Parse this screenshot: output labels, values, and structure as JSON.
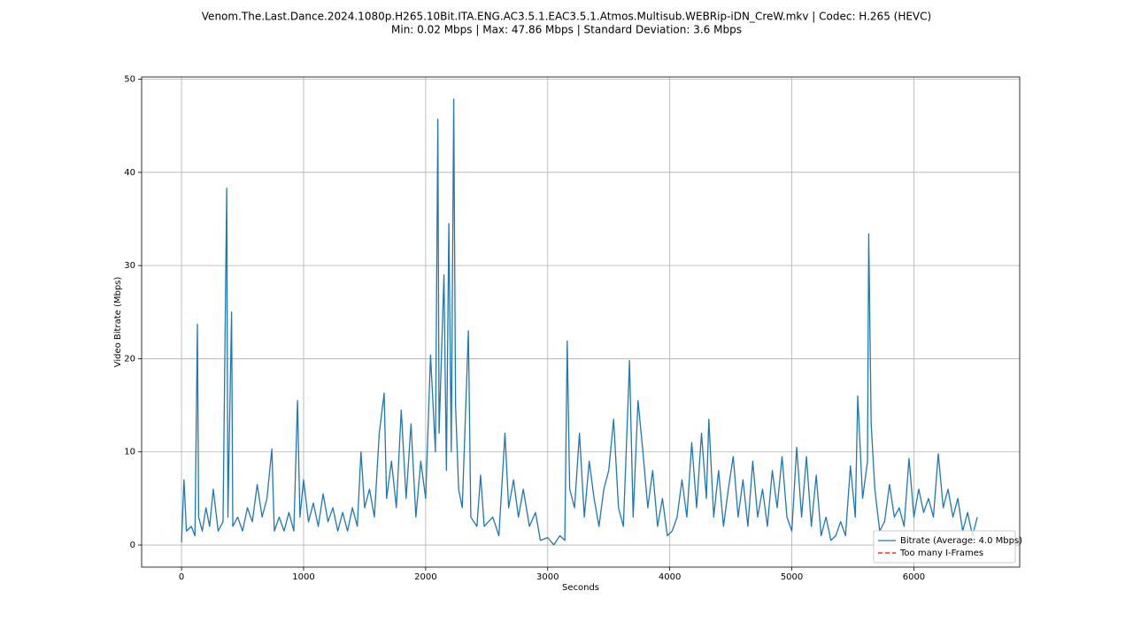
{
  "chart_data": {
    "type": "line",
    "title": "Venom.The.Last.Dance.2024.1080p.H265.10Bit.ITA.ENG.AC3.5.1.EAC3.5.1.Atmos.Multisub.WEBRip-iDN_CreW.mkv | Codec: H.265 (HEVC)",
    "subtitle": "Min: 0.02 Mbps | Max: 47.86 Mbps | Standard Deviation: 3.6 Mbps",
    "x_label": "Seconds",
    "y_label": "Video Bitrate (Mbps)",
    "xlim": [
      -327,
      6867
    ],
    "ylim": [
      -2.37,
      50.24
    ],
    "xticks": [
      0,
      1000,
      2000,
      3000,
      4000,
      5000,
      6000
    ],
    "yticks": [
      0,
      10,
      20,
      30,
      40,
      50
    ],
    "grid": true,
    "legend": "lower right",
    "series": [
      {
        "name": "Bitrate (Average: 4.0 Mbps)",
        "color": "#1f77b4",
        "dashed": false,
        "x": [
          0,
          20,
          40,
          80,
          110,
          130,
          140,
          170,
          200,
          230,
          260,
          300,
          340,
          370,
          380,
          410,
          420,
          460,
          500,
          540,
          580,
          620,
          660,
          700,
          740,
          760,
          800,
          840,
          880,
          920,
          950,
          970,
          1000,
          1040,
          1080,
          1120,
          1160,
          1200,
          1240,
          1280,
          1320,
          1360,
          1400,
          1440,
          1470,
          1500,
          1540,
          1580,
          1620,
          1660,
          1680,
          1720,
          1760,
          1800,
          1840,
          1880,
          1920,
          1960,
          2000,
          2040,
          2080,
          2100,
          2110,
          2150,
          2170,
          2190,
          2210,
          2230,
          2245,
          2270,
          2300,
          2350,
          2370,
          2420,
          2450,
          2480,
          2550,
          2600,
          2650,
          2680,
          2720,
          2760,
          2800,
          2850,
          2900,
          2940,
          3000,
          3050,
          3100,
          3140,
          3160,
          3180,
          3220,
          3260,
          3300,
          3340,
          3380,
          3420,
          3460,
          3500,
          3540,
          3580,
          3620,
          3660,
          3670,
          3700,
          3740,
          3780,
          3820,
          3860,
          3900,
          3940,
          3980,
          4020,
          4060,
          4100,
          4140,
          4180,
          4220,
          4260,
          4300,
          4320,
          4360,
          4400,
          4440,
          4480,
          4520,
          4560,
          4600,
          4640,
          4680,
          4720,
          4760,
          4800,
          4840,
          4880,
          4920,
          4960,
          5000,
          5040,
          5080,
          5120,
          5160,
          5200,
          5240,
          5280,
          5320,
          5360,
          5400,
          5440,
          5480,
          5520,
          5540,
          5580,
          5620,
          5630,
          5650,
          5680,
          5720,
          5760,
          5800,
          5840,
          5880,
          5920,
          5960,
          6000,
          6040,
          6080,
          6120,
          6160,
          6200,
          6240,
          6280,
          6320,
          6360,
          6400,
          6440,
          6480,
          6520
        ],
        "values": [
          0.3,
          7,
          1.5,
          2,
          1,
          23.7,
          3,
          1.5,
          4,
          2,
          6,
          1.5,
          2.5,
          38.3,
          3,
          25,
          2,
          3,
          1.5,
          4,
          2.5,
          6.5,
          3,
          5,
          10.3,
          1.5,
          3,
          1.5,
          3.5,
          1.5,
          15.5,
          3,
          7,
          2.5,
          4.5,
          2,
          5.5,
          2.5,
          4,
          1.5,
          3.5,
          1.5,
          4,
          2,
          10,
          4,
          6,
          3,
          12,
          16.3,
          5,
          9,
          4,
          14.5,
          5,
          13,
          3,
          9,
          5,
          20.4,
          10,
          45.7,
          12,
          29,
          8,
          34.5,
          10,
          47.86,
          15,
          6,
          4,
          23,
          3,
          2,
          7.5,
          2,
          3,
          1,
          12,
          4,
          7,
          3,
          6,
          2,
          3.5,
          0.5,
          0.8,
          0.02,
          1,
          0.5,
          21.9,
          6,
          4,
          12,
          3,
          9,
          5,
          2,
          6,
          8,
          13.5,
          4,
          2,
          16,
          19.8,
          3,
          15.5,
          10,
          4,
          8,
          2,
          5,
          1,
          1.5,
          3,
          7,
          3,
          11,
          4,
          12,
          5,
          13.5,
          3,
          8,
          2,
          6,
          9.5,
          3,
          7,
          2,
          9,
          3,
          6,
          2,
          8,
          4,
          9.5,
          3,
          1.5,
          10.5,
          3,
          9.5,
          2,
          7.5,
          1,
          3,
          0.5,
          1,
          2.5,
          1,
          8.5,
          3,
          16,
          5,
          9,
          33.4,
          13,
          6,
          1.5,
          2.5,
          6.5,
          3,
          4,
          2,
          9.3,
          3,
          6,
          3.5,
          5,
          3,
          9.8,
          4,
          6,
          3,
          5,
          1.5,
          3.5,
          1,
          3
        ]
      },
      {
        "name": "Too many I-Frames",
        "color": "#ff0000",
        "dashed": true,
        "x": [],
        "values": []
      }
    ]
  }
}
